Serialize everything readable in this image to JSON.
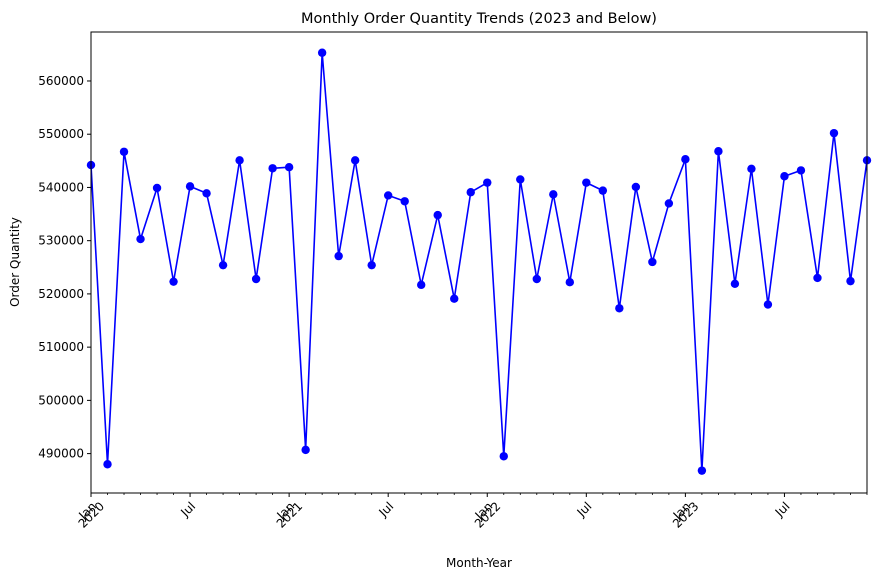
{
  "chart_data": {
    "type": "line",
    "title": "Monthly Order Quantity Trends (2023 and Below)",
    "xlabel": "Month-Year",
    "ylabel": "Order Quantity",
    "ylim": [
      482600,
      569200
    ],
    "yticks": [
      490000,
      500000,
      510000,
      520000,
      530000,
      540000,
      550000,
      560000
    ],
    "ytick_labels": [
      "490000",
      "500000",
      "510000",
      "520000",
      "530000",
      "540000",
      "550000",
      "560000"
    ],
    "xticks": [
      {
        "index": 0,
        "label": "Jan",
        "sublabel": "2020"
      },
      {
        "index": 6,
        "label": "Jul",
        "sublabel": ""
      },
      {
        "index": 12,
        "label": "Jan",
        "sublabel": "2021"
      },
      {
        "index": 18,
        "label": "Jul",
        "sublabel": ""
      },
      {
        "index": 24,
        "label": "Jan",
        "sublabel": "2022"
      },
      {
        "index": 30,
        "label": "Jul",
        "sublabel": ""
      },
      {
        "index": 36,
        "label": "Jan",
        "sublabel": "2023"
      },
      {
        "index": 42,
        "label": "Jul",
        "sublabel": ""
      }
    ],
    "series": [
      {
        "name": "Order Quantity",
        "color": "#0000ff",
        "x": [
          "2020-01",
          "2020-02",
          "2020-03",
          "2020-04",
          "2020-05",
          "2020-06",
          "2020-07",
          "2020-08",
          "2020-09",
          "2020-10",
          "2020-11",
          "2020-12",
          "2021-01",
          "2021-02",
          "2021-03",
          "2021-04",
          "2021-05",
          "2021-06",
          "2021-07",
          "2021-08",
          "2021-09",
          "2021-10",
          "2021-11",
          "2021-12",
          "2022-01",
          "2022-02",
          "2022-03",
          "2022-04",
          "2022-05",
          "2022-06",
          "2022-07",
          "2022-08",
          "2022-09",
          "2022-10",
          "2022-11",
          "2022-12",
          "2023-01",
          "2023-02",
          "2023-03",
          "2023-04",
          "2023-05",
          "2023-06",
          "2023-07",
          "2023-08",
          "2023-09",
          "2023-10",
          "2023-11",
          "2023-12"
        ],
        "values": [
          544200,
          488000,
          546700,
          530300,
          539900,
          522300,
          540200,
          538900,
          525400,
          545100,
          522800,
          543600,
          543800,
          490700,
          565300,
          527100,
          545100,
          525400,
          538500,
          537400,
          521700,
          534800,
          519100,
          539100,
          540900,
          489500,
          541500,
          522800,
          538700,
          522200,
          540900,
          539400,
          517300,
          540100,
          526000,
          537000,
          545300,
          486800,
          546800,
          521900,
          543500,
          518000,
          542100,
          543200,
          523000,
          550200,
          522400,
          545100
        ]
      }
    ]
  }
}
